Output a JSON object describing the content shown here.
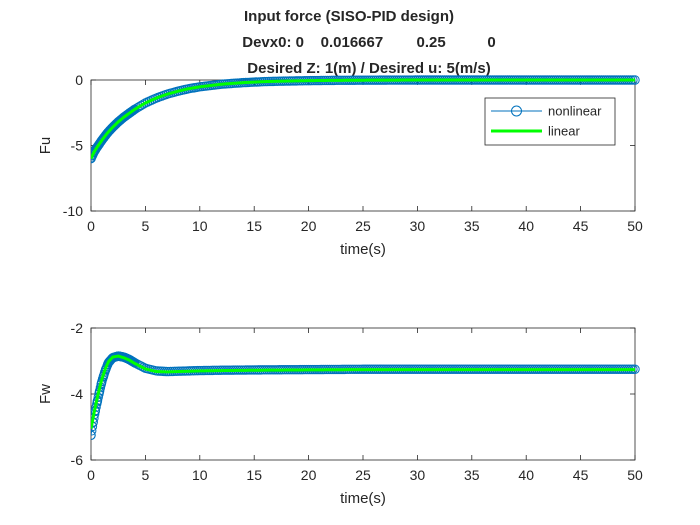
{
  "figure": {
    "title_lines": [
      "Input force (SISO-PID design)",
      "Devx0: 0    0.016667        0.25          0",
      "Desired Z: 1(m) / Desired u: 5(m/s)"
    ]
  },
  "legend": {
    "entries": [
      "nonlinear",
      "linear"
    ]
  },
  "colors": {
    "nonlinear": "#0072BD",
    "linear": "#00FF00",
    "axes": "#262626",
    "background": "#ffffff"
  },
  "chart_data": [
    {
      "type": "line",
      "xlabel": "time(s)",
      "ylabel": "Fu",
      "xlim": [
        0,
        50
      ],
      "ylim": [
        -10,
        0
      ],
      "xticks": [
        0,
        5,
        10,
        15,
        20,
        25,
        30,
        35,
        40,
        45,
        50
      ],
      "yticks": [
        -10,
        -5,
        0
      ],
      "grid": false,
      "legend_position": "top-right",
      "series": [
        {
          "name": "nonlinear",
          "marker": "circle",
          "x": [
            0,
            0.25,
            0.5,
            1,
            1.5,
            2,
            2.5,
            3,
            4,
            5,
            6,
            7,
            8,
            9,
            10,
            12,
            14,
            16,
            18,
            20,
            22,
            25,
            30,
            35,
            40,
            45,
            50
          ],
          "y": [
            -6.0,
            -5.55,
            -5.2,
            -4.6,
            -4.05,
            -3.6,
            -3.2,
            -2.85,
            -2.25,
            -1.75,
            -1.38,
            -1.08,
            -0.85,
            -0.66,
            -0.52,
            -0.32,
            -0.2,
            -0.12,
            -0.08,
            -0.05,
            -0.03,
            -0.015,
            0,
            0,
            0,
            0,
            0
          ]
        },
        {
          "name": "linear",
          "x": [
            0,
            0.25,
            0.5,
            1,
            1.5,
            2,
            2.5,
            3,
            4,
            5,
            6,
            7,
            8,
            9,
            10,
            12,
            14,
            16,
            18,
            20,
            22,
            25,
            30,
            35,
            40,
            45,
            50
          ],
          "y": [
            -6.0,
            -5.55,
            -5.2,
            -4.6,
            -4.05,
            -3.6,
            -3.2,
            -2.85,
            -2.25,
            -1.75,
            -1.38,
            -1.08,
            -0.85,
            -0.66,
            -0.52,
            -0.32,
            -0.2,
            -0.12,
            -0.08,
            -0.05,
            -0.03,
            -0.015,
            0,
            0,
            0,
            0,
            0
          ]
        }
      ]
    },
    {
      "type": "line",
      "xlabel": "time(s)",
      "ylabel": "Fw",
      "xlim": [
        0,
        50
      ],
      "ylim": [
        -6,
        -2
      ],
      "xticks": [
        0,
        5,
        10,
        15,
        20,
        25,
        30,
        35,
        40,
        45,
        50
      ],
      "yticks": [
        -6,
        -4,
        -2
      ],
      "grid": false,
      "series": [
        {
          "name": "nonlinear",
          "marker": "circle",
          "x": [
            0,
            0.2,
            0.4,
            0.6,
            0.8,
            1.0,
            1.3,
            1.6,
            2.0,
            2.5,
            3.0,
            3.5,
            4.0,
            5.0,
            6.0,
            7.0,
            8.0,
            10,
            12,
            15,
            20,
            25,
            30,
            35,
            40,
            45,
            50
          ],
          "y": [
            -5.25,
            -4.85,
            -4.5,
            -4.2,
            -3.9,
            -3.62,
            -3.3,
            -3.05,
            -2.9,
            -2.85,
            -2.88,
            -2.95,
            -3.05,
            -3.22,
            -3.3,
            -3.32,
            -3.31,
            -3.29,
            -3.28,
            -3.27,
            -3.26,
            -3.25,
            -3.25,
            -3.25,
            -3.25,
            -3.25,
            -3.25
          ]
        },
        {
          "name": "linear",
          "x": [
            0,
            0.2,
            0.4,
            0.6,
            0.8,
            1.0,
            1.3,
            1.6,
            2.0,
            2.5,
            3.0,
            3.5,
            4.0,
            5.0,
            6.0,
            7.0,
            8.0,
            10,
            12,
            15,
            20,
            25,
            30,
            35,
            40,
            45,
            50
          ],
          "y": [
            -5.05,
            -4.7,
            -4.38,
            -4.08,
            -3.8,
            -3.55,
            -3.25,
            -3.02,
            -2.88,
            -2.85,
            -2.9,
            -2.97,
            -3.07,
            -3.24,
            -3.32,
            -3.33,
            -3.32,
            -3.3,
            -3.29,
            -3.28,
            -3.27,
            -3.26,
            -3.26,
            -3.26,
            -3.26,
            -3.26,
            -3.26
          ]
        }
      ]
    }
  ]
}
